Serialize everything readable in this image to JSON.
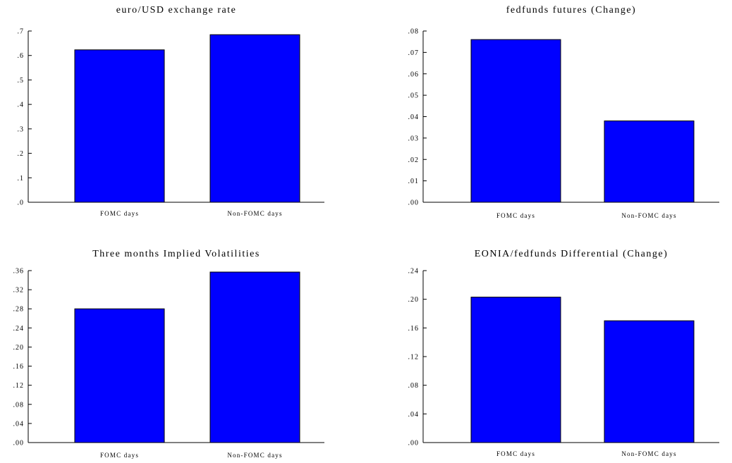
{
  "chart_data": [
    {
      "type": "bar",
      "title": "euro/USD exchange rate",
      "categories": [
        "FOMC days",
        "Non-FOMC days"
      ],
      "values": [
        0.623,
        0.685
      ],
      "ylim": [
        0,
        0.7
      ],
      "yticks": [
        ".0",
        ".1",
        ".2",
        ".3",
        ".4",
        ".5",
        ".6",
        ".7"
      ],
      "xlabel": "",
      "ylabel": "",
      "grid": false,
      "color": "#0000ff"
    },
    {
      "type": "bar",
      "title": "fedfunds futures (Change)",
      "categories": [
        "FOMC days",
        "Non-FOMC days"
      ],
      "values": [
        0.076,
        0.038
      ],
      "ylim": [
        0,
        0.08
      ],
      "yticks": [
        ".00",
        ".01",
        ".02",
        ".03",
        ".04",
        ".05",
        ".06",
        ".07",
        ".08"
      ],
      "xlabel": "",
      "ylabel": "",
      "grid": false,
      "color": "#0000ff"
    },
    {
      "type": "bar",
      "title": "Three months Implied Volatilities",
      "categories": [
        "FOMC days",
        "Non-FOMC days"
      ],
      "values": [
        0.28,
        0.357
      ],
      "ylim": [
        0,
        0.36
      ],
      "yticks": [
        ".00",
        ".04",
        ".08",
        ".12",
        ".16",
        ".20",
        ".24",
        ".28",
        ".32",
        ".36"
      ],
      "xlabel": "",
      "ylabel": "",
      "grid": false,
      "color": "#0000ff"
    },
    {
      "type": "bar",
      "title": "EONIA/fedfunds Differential (Change)",
      "categories": [
        "FOMC days",
        "Non-FOMC days"
      ],
      "values": [
        0.203,
        0.17
      ],
      "ylim": [
        0,
        0.24
      ],
      "yticks": [
        ".00",
        ".04",
        ".08",
        ".12",
        ".16",
        ".20",
        ".24"
      ],
      "xlabel": "",
      "ylabel": "",
      "grid": false,
      "color": "#0000ff"
    }
  ]
}
